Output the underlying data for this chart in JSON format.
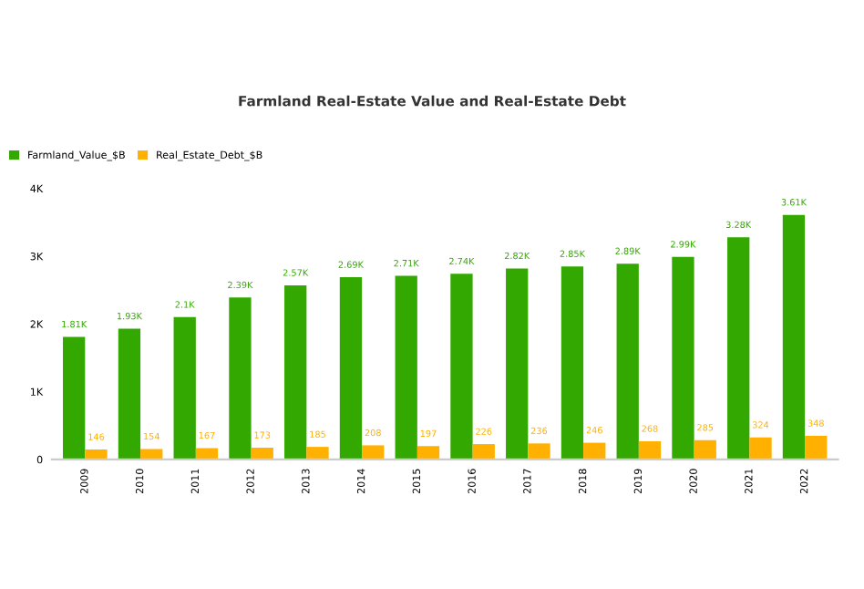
{
  "chart_data": {
    "type": "bar",
    "title": "Farmland Real-Estate Value and Real-Estate Debt",
    "categories": [
      "2009",
      "2010",
      "2011",
      "2012",
      "2013",
      "2014",
      "2015",
      "2016",
      "2017",
      "2018",
      "2019",
      "2020",
      "2021",
      "2022"
    ],
    "series": [
      {
        "name": "Farmland_Value_$B",
        "color": "#33a800",
        "values": [
          1810,
          1930,
          2100,
          2390,
          2570,
          2690,
          2710,
          2740,
          2820,
          2850,
          2890,
          2990,
          3280,
          3610
        ],
        "value_labels": [
          "1.81K",
          "1.93K",
          "2.1K",
          "2.39K",
          "2.57K",
          "2.69K",
          "2.71K",
          "2.74K",
          "2.82K",
          "2.85K",
          "2.89K",
          "2.99K",
          "3.28K",
          "3.61K"
        ]
      },
      {
        "name": "Real_Estate_Debt_$B",
        "color": "#ffb000",
        "values": [
          146,
          154,
          167,
          173,
          185,
          208,
          197,
          226,
          236,
          246,
          268,
          285,
          324,
          348
        ],
        "value_labels": [
          "146",
          "154",
          "167",
          "173",
          "185",
          "208",
          "197",
          "226",
          "236",
          "246",
          "268",
          "285",
          "324",
          "348"
        ]
      }
    ],
    "ylim": [
      0,
      4000
    ],
    "yticks": [
      {
        "value": 0,
        "label": "0"
      },
      {
        "value": 1000,
        "label": "1K"
      },
      {
        "value": 2000,
        "label": "2K"
      },
      {
        "value": 3000,
        "label": "3K"
      },
      {
        "value": 4000,
        "label": "4K"
      }
    ],
    "legend": "top left",
    "grid": false
  }
}
